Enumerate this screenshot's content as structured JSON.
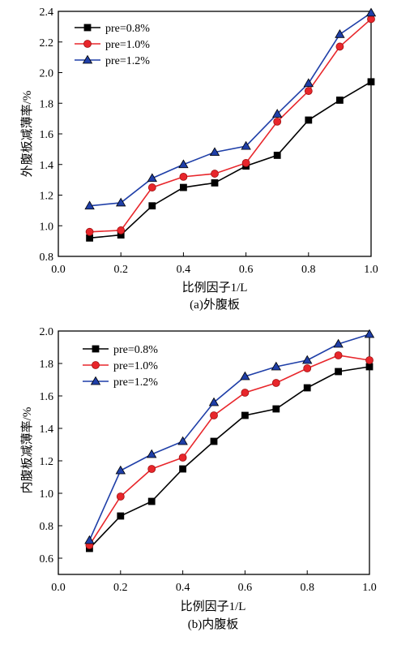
{
  "chart_data": [
    {
      "type": "line",
      "caption": "(a)外腹板",
      "xlabel": "比例因子1/L",
      "ylabel": "外腹板减薄率/%",
      "xlim": [
        0.0,
        1.0
      ],
      "ylim": [
        0.8,
        2.4
      ],
      "xticks": [
        "0.0",
        "0.2",
        "0.4",
        "0.6",
        "0.8",
        "1.0"
      ],
      "yticks": [
        "0.8",
        "1.0",
        "1.2",
        "1.4",
        "1.6",
        "1.8",
        "2.0",
        "2.2",
        "2.4"
      ],
      "legend_position": "top-left",
      "x": [
        0.1,
        0.2,
        0.3,
        0.4,
        0.5,
        0.6,
        0.7,
        0.8,
        0.9,
        1.0
      ],
      "series": [
        {
          "name": "pre=0.8%",
          "color": "#000000",
          "marker": "square",
          "values": [
            0.92,
            0.94,
            1.13,
            1.25,
            1.28,
            1.39,
            1.46,
            1.69,
            1.82,
            1.94
          ]
        },
        {
          "name": "pre=1.0%",
          "color": "#e8262b",
          "marker": "circle",
          "values": [
            0.96,
            0.97,
            1.25,
            1.32,
            1.34,
            1.41,
            1.68,
            1.88,
            2.17,
            2.35
          ]
        },
        {
          "name": "pre=1.2%",
          "color": "#1f3fa8",
          "marker": "triangle",
          "values": [
            1.13,
            1.15,
            1.31,
            1.4,
            1.48,
            1.52,
            1.73,
            1.93,
            2.25,
            2.39
          ]
        }
      ]
    },
    {
      "type": "line",
      "caption": "(b)内腹板",
      "xlabel": "比例因子1/L",
      "ylabel": "内腹板减薄率/%",
      "xlim": [
        0.0,
        1.0
      ],
      "ylim": [
        0.5,
        2.0
      ],
      "xticks": [
        "0.0",
        "0.2",
        "0.4",
        "0.6",
        "0.8",
        "1.0"
      ],
      "yticks": [
        "0.6",
        "0.8",
        "1.0",
        "1.2",
        "1.4",
        "1.6",
        "1.8",
        "2.0"
      ],
      "legend_position": "top-left",
      "x": [
        0.1,
        0.2,
        0.3,
        0.4,
        0.5,
        0.6,
        0.7,
        0.8,
        0.9,
        1.0
      ],
      "series": [
        {
          "name": "pre=0.8%",
          "color": "#000000",
          "marker": "square",
          "values": [
            0.66,
            0.86,
            0.95,
            1.15,
            1.32,
            1.48,
            1.52,
            1.65,
            1.75,
            1.78
          ]
        },
        {
          "name": "pre=1.0%",
          "color": "#e8262b",
          "marker": "circle",
          "values": [
            0.68,
            0.98,
            1.15,
            1.22,
            1.48,
            1.62,
            1.68,
            1.77,
            1.85,
            1.82
          ]
        },
        {
          "name": "pre=1.2%",
          "color": "#1f3fa8",
          "marker": "triangle",
          "values": [
            0.71,
            1.14,
            1.24,
            1.32,
            1.56,
            1.72,
            1.78,
            1.82,
            1.92,
            1.98
          ]
        }
      ]
    }
  ]
}
